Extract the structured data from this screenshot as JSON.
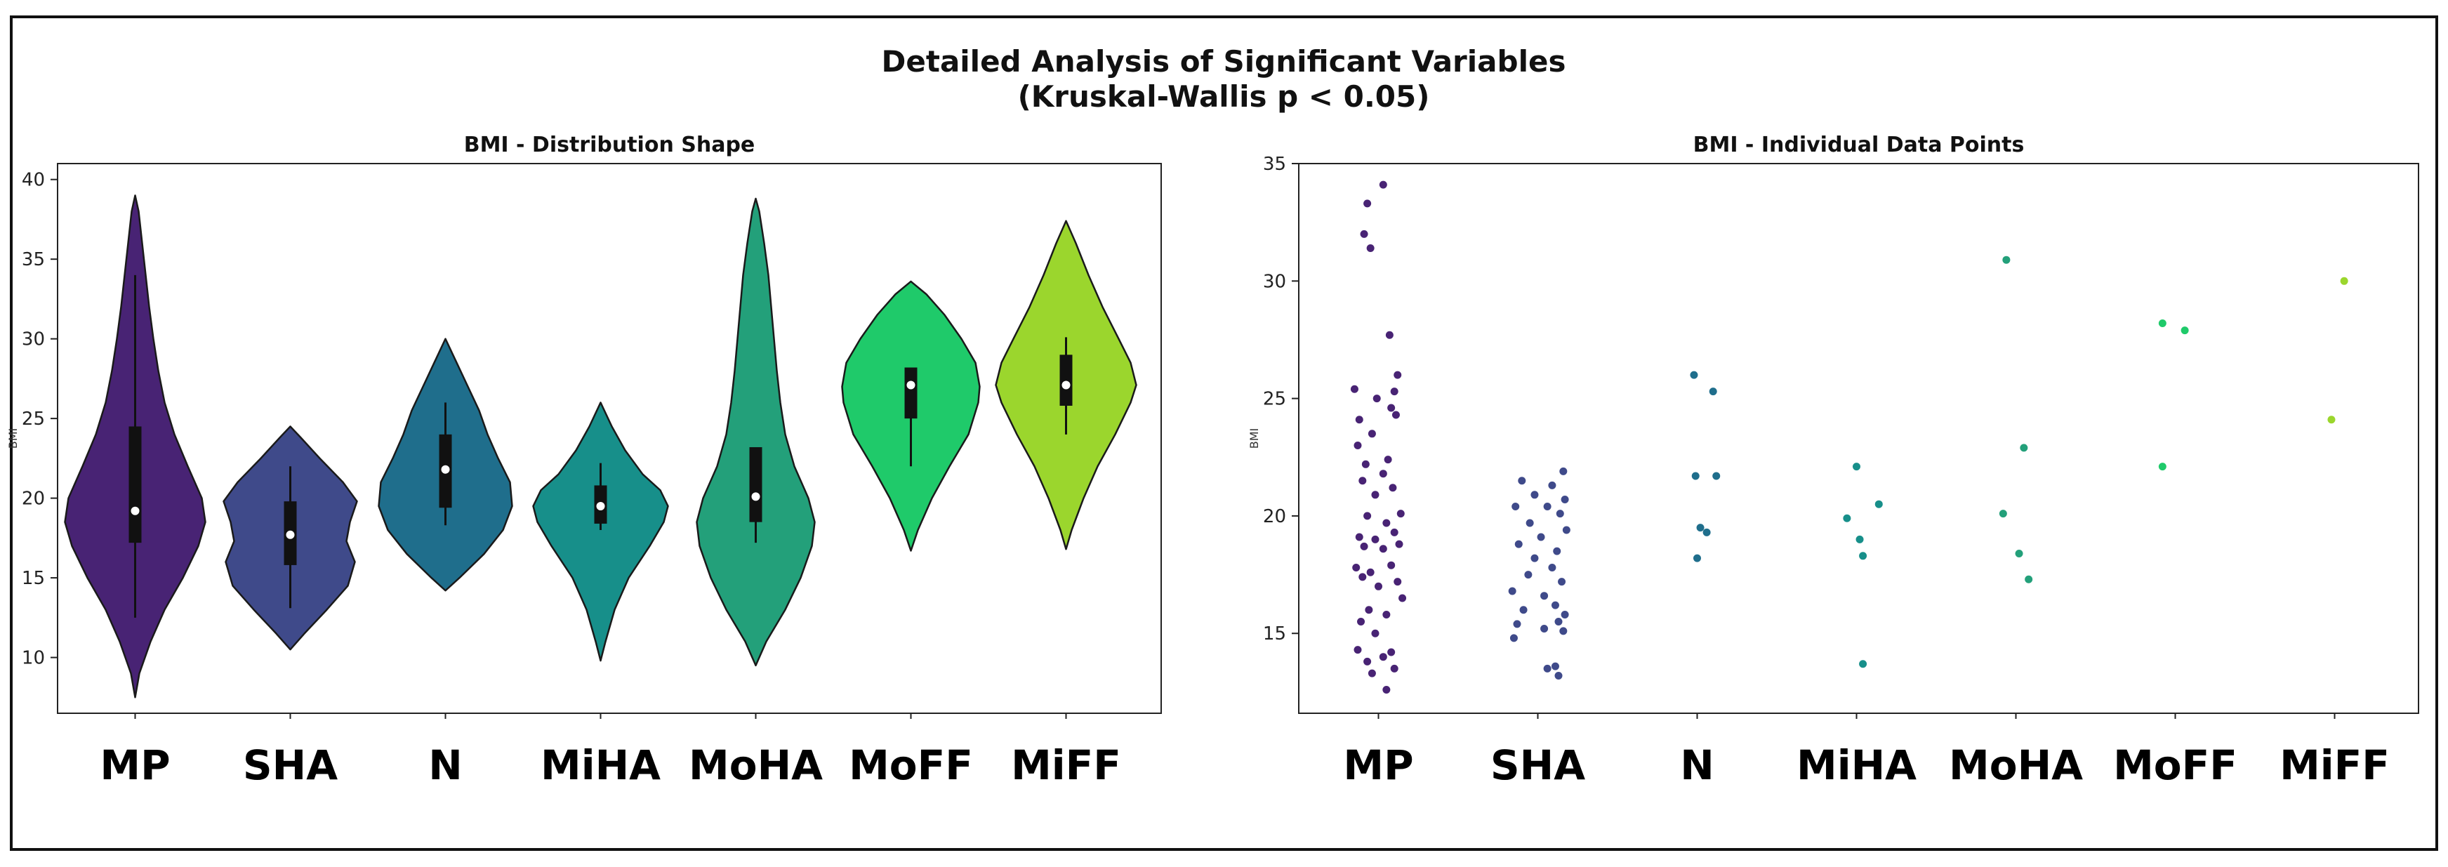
{
  "figure": {
    "title_line1": "Detailed Analysis of Significant Variables",
    "title_line2": "(Kruskal-Wallis p < 0.05)"
  },
  "chart_data": [
    {
      "type": "violin",
      "title": "BMI - Distribution Shape",
      "xlabel": "",
      "ylabel": "BMI",
      "ylim": [
        6.5,
        41
      ],
      "yticks": [
        10,
        15,
        20,
        25,
        30,
        35,
        40
      ],
      "categories": [
        "MP",
        "SHA",
        "N",
        "MiHA",
        "MoHA",
        "MoFF",
        "MiFF"
      ],
      "colors": [
        "#482374",
        "#3f4a8a",
        "#1f6e8c",
        "#178f8a",
        "#23a07a",
        "#1fca6a",
        "#9bd62d"
      ],
      "violins": [
        {
          "name": "MP",
          "min": 7.5,
          "max": 39,
          "q1": 17.2,
          "median": 19.2,
          "q3": 24.5,
          "whisker_low": 12.5,
          "whisker_high": 34,
          "profile": [
            [
              7.5,
              0
            ],
            [
              9,
              0.06
            ],
            [
              11,
              0.22
            ],
            [
              13,
              0.42
            ],
            [
              15,
              0.68
            ],
            [
              17,
              0.9
            ],
            [
              18.5,
              1
            ],
            [
              20,
              0.95
            ],
            [
              22,
              0.75
            ],
            [
              24,
              0.56
            ],
            [
              26,
              0.42
            ],
            [
              28,
              0.33
            ],
            [
              30,
              0.26
            ],
            [
              32,
              0.2
            ],
            [
              34,
              0.15
            ],
            [
              36,
              0.1
            ],
            [
              38,
              0.05
            ],
            [
              39,
              0
            ]
          ]
        },
        {
          "name": "SHA",
          "min": 10.5,
          "max": 24.5,
          "q1": 15.8,
          "median": 17.7,
          "q3": 19.8,
          "whisker_low": 13.1,
          "whisker_high": 22,
          "profile": [
            [
              10.5,
              0
            ],
            [
              11.5,
              0.2
            ],
            [
              13,
              0.52
            ],
            [
              14.5,
              0.82
            ],
            [
              16,
              0.92
            ],
            [
              17.3,
              0.8
            ],
            [
              18.5,
              0.85
            ],
            [
              19.8,
              0.95
            ],
            [
              21,
              0.75
            ],
            [
              22.5,
              0.42
            ],
            [
              23.8,
              0.15
            ],
            [
              24.5,
              0
            ]
          ]
        },
        {
          "name": "N",
          "min": 14.2,
          "max": 30,
          "q1": 19.4,
          "median": 21.8,
          "q3": 24.0,
          "whisker_low": 18.3,
          "whisker_high": 26,
          "profile": [
            [
              14.2,
              0
            ],
            [
              15,
              0.2
            ],
            [
              16.5,
              0.55
            ],
            [
              18,
              0.82
            ],
            [
              19.5,
              0.95
            ],
            [
              21,
              0.92
            ],
            [
              22.5,
              0.75
            ],
            [
              24,
              0.6
            ],
            [
              25.5,
              0.48
            ],
            [
              27,
              0.32
            ],
            [
              28.5,
              0.16
            ],
            [
              30,
              0
            ]
          ]
        },
        {
          "name": "MiHA",
          "min": 9.8,
          "max": 26,
          "q1": 18.4,
          "median": 19.5,
          "q3": 20.8,
          "whisker_low": 18,
          "whisker_high": 22.2,
          "profile": [
            [
              9.8,
              0
            ],
            [
              11,
              0.07
            ],
            [
              13,
              0.2
            ],
            [
              15,
              0.4
            ],
            [
              17,
              0.7
            ],
            [
              18.5,
              0.9
            ],
            [
              19.5,
              0.96
            ],
            [
              20.5,
              0.85
            ],
            [
              21.5,
              0.6
            ],
            [
              23,
              0.35
            ],
            [
              24.5,
              0.16
            ],
            [
              26,
              0
            ]
          ]
        },
        {
          "name": "MoHA",
          "min": 9.5,
          "max": 38.8,
          "q1": 18.5,
          "median": 20.1,
          "q3": 23.2,
          "whisker_low": 17.2,
          "whisker_high": 23.2,
          "profile": [
            [
              9.5,
              0
            ],
            [
              11,
              0.15
            ],
            [
              13,
              0.42
            ],
            [
              15,
              0.64
            ],
            [
              17,
              0.8
            ],
            [
              18.5,
              0.84
            ],
            [
              20,
              0.75
            ],
            [
              22,
              0.55
            ],
            [
              24,
              0.42
            ],
            [
              26,
              0.35
            ],
            [
              28,
              0.3
            ],
            [
              30,
              0.26
            ],
            [
              32,
              0.22
            ],
            [
              34,
              0.18
            ],
            [
              36,
              0.12
            ],
            [
              38,
              0.05
            ],
            [
              38.8,
              0
            ]
          ]
        },
        {
          "name": "MoFF",
          "min": 16.7,
          "max": 33.6,
          "q1": 25.0,
          "median": 27.1,
          "q3": 28.2,
          "whisker_low": 22,
          "whisker_high": 28.2,
          "profile": [
            [
              16.7,
              0
            ],
            [
              18,
              0.1
            ],
            [
              20,
              0.3
            ],
            [
              22,
              0.55
            ],
            [
              24,
              0.82
            ],
            [
              26,
              0.96
            ],
            [
              27,
              0.98
            ],
            [
              28.5,
              0.92
            ],
            [
              30,
              0.72
            ],
            [
              31.5,
              0.48
            ],
            [
              32.8,
              0.22
            ],
            [
              33.6,
              0
            ]
          ]
        },
        {
          "name": "MiFF",
          "min": 16.8,
          "max": 37.4,
          "q1": 25.8,
          "median": 27.1,
          "q3": 29.0,
          "whisker_low": 24,
          "whisker_high": 30.1,
          "profile": [
            [
              16.8,
              0
            ],
            [
              18,
              0.08
            ],
            [
              20,
              0.25
            ],
            [
              22,
              0.45
            ],
            [
              24,
              0.7
            ],
            [
              26,
              0.92
            ],
            [
              27.1,
              1
            ],
            [
              28.5,
              0.92
            ],
            [
              30,
              0.75
            ],
            [
              32,
              0.52
            ],
            [
              34,
              0.32
            ],
            [
              36,
              0.14
            ],
            [
              37.4,
              0
            ]
          ]
        }
      ]
    },
    {
      "type": "scatter",
      "title": "BMI - Individual Data Points",
      "xlabel": "",
      "ylabel": "BMI",
      "ylim": [
        11.6,
        35
      ],
      "yticks": [
        15,
        20,
        25,
        30,
        35
      ],
      "categories": [
        "MP",
        "SHA",
        "N",
        "MiHA",
        "MoHA",
        "MoFF",
        "MiFF"
      ],
      "colors": [
        "#482374",
        "#3f4a8a",
        "#1f6e8c",
        "#178f8a",
        "#23a07a",
        "#1fca6a",
        "#9bd62d"
      ],
      "points": [
        {
          "group": "MP",
          "values": [
            [
              0.03,
              34.1
            ],
            [
              -0.07,
              33.3
            ],
            [
              -0.09,
              32.0
            ],
            [
              -0.05,
              31.4
            ],
            [
              0.07,
              27.7
            ],
            [
              0.12,
              26.0
            ],
            [
              -0.15,
              25.4
            ],
            [
              0.1,
              25.3
            ],
            [
              -0.01,
              25.0
            ],
            [
              0.08,
              24.6
            ],
            [
              -0.12,
              24.1
            ],
            [
              0.11,
              24.3
            ],
            [
              -0.04,
              23.5
            ],
            [
              -0.13,
              23.0
            ],
            [
              0.06,
              22.4
            ],
            [
              -0.08,
              22.2
            ],
            [
              0.03,
              21.8
            ],
            [
              -0.1,
              21.5
            ],
            [
              0.09,
              21.2
            ],
            [
              -0.02,
              20.9
            ],
            [
              0.14,
              20.1
            ],
            [
              -0.07,
              20.0
            ],
            [
              0.05,
              19.7
            ],
            [
              -0.12,
              19.1
            ],
            [
              0.1,
              19.3
            ],
            [
              -0.02,
              19.0
            ],
            [
              0.13,
              18.8
            ],
            [
              -0.09,
              18.7
            ],
            [
              0.03,
              18.6
            ],
            [
              -0.14,
              17.8
            ],
            [
              0.08,
              17.9
            ],
            [
              -0.05,
              17.6
            ],
            [
              0.12,
              17.2
            ],
            [
              -0.1,
              17.4
            ],
            [
              0.0,
              17.0
            ],
            [
              0.15,
              16.5
            ],
            [
              -0.06,
              16.0
            ],
            [
              0.05,
              15.8
            ],
            [
              -0.11,
              15.5
            ],
            [
              -0.02,
              15.0
            ],
            [
              -0.13,
              14.3
            ],
            [
              0.08,
              14.2
            ],
            [
              0.03,
              14.0
            ],
            [
              -0.07,
              13.8
            ],
            [
              0.1,
              13.5
            ],
            [
              -0.04,
              13.3
            ],
            [
              0.05,
              12.6
            ]
          ]
        },
        {
          "group": "SHA",
          "values": [
            [
              0.16,
              21.9
            ],
            [
              -0.1,
              21.5
            ],
            [
              0.09,
              21.3
            ],
            [
              -0.02,
              20.9
            ],
            [
              0.17,
              20.7
            ],
            [
              -0.14,
              20.4
            ],
            [
              0.06,
              20.4
            ],
            [
              0.14,
              20.1
            ],
            [
              -0.05,
              19.7
            ],
            [
              0.18,
              19.4
            ],
            [
              0.02,
              19.1
            ],
            [
              -0.12,
              18.8
            ],
            [
              0.12,
              18.5
            ],
            [
              -0.02,
              18.2
            ],
            [
              0.09,
              17.8
            ],
            [
              -0.06,
              17.5
            ],
            [
              0.15,
              17.2
            ],
            [
              -0.16,
              16.8
            ],
            [
              0.04,
              16.6
            ],
            [
              0.11,
              16.2
            ],
            [
              -0.09,
              16.0
            ],
            [
              0.17,
              15.8
            ],
            [
              -0.13,
              15.4
            ],
            [
              0.13,
              15.5
            ],
            [
              0.04,
              15.2
            ],
            [
              0.16,
              15.1
            ],
            [
              -0.15,
              14.8
            ],
            [
              0.11,
              13.6
            ],
            [
              0.06,
              13.5
            ],
            [
              0.13,
              13.2
            ]
          ]
        },
        {
          "group": "N",
          "values": [
            [
              -0.02,
              26.0
            ],
            [
              0.1,
              25.3
            ],
            [
              -0.01,
              21.7
            ],
            [
              0.12,
              21.7
            ],
            [
              0.02,
              19.5
            ],
            [
              0.06,
              19.3
            ],
            [
              0.0,
              18.2
            ]
          ]
        },
        {
          "group": "MiHA",
          "values": [
            [
              0.0,
              22.1
            ],
            [
              0.14,
              20.5
            ],
            [
              -0.06,
              19.9
            ],
            [
              0.02,
              19.0
            ],
            [
              0.04,
              18.3
            ],
            [
              0.04,
              13.7
            ]
          ]
        },
        {
          "group": "MoHA",
          "values": [
            [
              -0.06,
              30.9
            ],
            [
              0.05,
              22.9
            ],
            [
              -0.08,
              20.1
            ],
            [
              0.02,
              18.4
            ],
            [
              0.08,
              17.3
            ]
          ]
        },
        {
          "group": "MoFF",
          "values": [
            [
              -0.08,
              28.2
            ],
            [
              0.06,
              27.9
            ],
            [
              -0.08,
              22.1
            ]
          ]
        },
        {
          "group": "MiFF",
          "values": [
            [
              0.06,
              30.0
            ],
            [
              -0.02,
              24.1
            ]
          ]
        }
      ]
    }
  ]
}
